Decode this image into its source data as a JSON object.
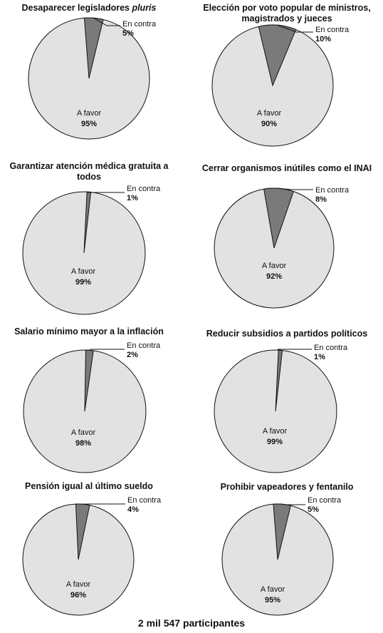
{
  "colors": {
    "favor": "#e2e2e2",
    "contra": "#7a7a7a",
    "outline": "#111111"
  },
  "chart_data": [
    {
      "type": "pie",
      "title": "Desaparecer legisladores ",
      "title_italic": "pluris",
      "slices": [
        {
          "label": "A favor",
          "value": 95,
          "value_label": "95%"
        },
        {
          "label": "En contra",
          "value": 5,
          "value_label": "5%"
        }
      ]
    },
    {
      "type": "pie",
      "title": "Elección por voto popular de ministros, magistrados y jueces",
      "title_italic": "",
      "slices": [
        {
          "label": "A favor",
          "value": 90,
          "value_label": "90%"
        },
        {
          "label": "En contra",
          "value": 10,
          "value_label": "10%"
        }
      ]
    },
    {
      "type": "pie",
      "title": "Garantizar atención médica gratuita a todos",
      "title_italic": "",
      "slices": [
        {
          "label": "A favor",
          "value": 99,
          "value_label": "99%"
        },
        {
          "label": "En contra",
          "value": 1,
          "value_label": "1%"
        }
      ]
    },
    {
      "type": "pie",
      "title": "Cerrar organismos inútiles como el INAI",
      "title_italic": "",
      "slices": [
        {
          "label": "A favor",
          "value": 92,
          "value_label": "92%"
        },
        {
          "label": "En contra",
          "value": 8,
          "value_label": "8%"
        }
      ]
    },
    {
      "type": "pie",
      "title": "Salario mínimo mayor a la inflación",
      "title_italic": "",
      "slices": [
        {
          "label": "A favor",
          "value": 98,
          "value_label": "98%"
        },
        {
          "label": "En contra",
          "value": 2,
          "value_label": "2%"
        }
      ]
    },
    {
      "type": "pie",
      "title": "Reducir subsidios a partidos políticos",
      "title_italic": "",
      "slices": [
        {
          "label": "A favor",
          "value": 99,
          "value_label": "99%"
        },
        {
          "label": "En contra",
          "value": 1,
          "value_label": "1%"
        }
      ]
    },
    {
      "type": "pie",
      "title": "Pensión igual al último sueldo",
      "title_italic": "",
      "slices": [
        {
          "label": "A favor",
          "value": 96,
          "value_label": "96%"
        },
        {
          "label": "En contra",
          "value": 4,
          "value_label": "4%"
        }
      ]
    },
    {
      "type": "pie",
      "title": "Prohibir vapeadores y fentanilo",
      "title_italic": "",
      "slices": [
        {
          "label": "A favor",
          "value": 95,
          "value_label": "95%"
        },
        {
          "label": "En contra",
          "value": 5,
          "value_label": "5%"
        }
      ]
    }
  ],
  "footer": "2 mil 547 participantes"
}
